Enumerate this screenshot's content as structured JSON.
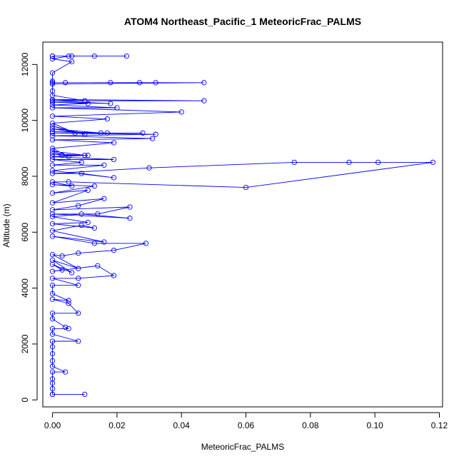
{
  "chart_data": {
    "type": "line",
    "title": "ATOM4 Northeast_Pacific_1 MeteoricFrac_PALMS",
    "xlabel": "MeteoricFrac_PALMS",
    "ylabel": "Altitude (m)",
    "xlim": [
      -0.003,
      0.121
    ],
    "ylim": [
      -250,
      12800
    ],
    "xticks": [
      0,
      0.02,
      0.04,
      0.06,
      0.08,
      0.1,
      0.12
    ],
    "xtick_labels": [
      "0.00",
      "0.02",
      "0.04",
      "0.06",
      "0.08",
      "0.10",
      "0.12"
    ],
    "yticks": [
      0,
      2000,
      4000,
      6000,
      8000,
      10000,
      12000
    ],
    "ytick_labels": [
      "0",
      "2000",
      "4000",
      "6000",
      "8000",
      "10000",
      "12000"
    ],
    "grid": false,
    "legend": "none",
    "series": [
      {
        "color": "#0000ff",
        "marker": "open-circle",
        "points": [
          [
            0.0,
            200
          ],
          [
            0.01,
            200
          ],
          [
            0.0,
            200
          ],
          [
            0.0,
            400
          ],
          [
            0.0,
            600
          ],
          [
            0.0,
            750
          ],
          [
            0.0,
            1000
          ],
          [
            0.004,
            1000
          ],
          [
            0.0,
            1200
          ],
          [
            0.0,
            1400
          ],
          [
            0.0,
            1650
          ],
          [
            0.0,
            1900
          ],
          [
            0.0,
            2100
          ],
          [
            0.008,
            2100
          ],
          [
            0.0,
            2350
          ],
          [
            0.0,
            2550
          ],
          [
            0.005,
            2550
          ],
          [
            0.004,
            2600
          ],
          [
            0.0,
            2900
          ],
          [
            0.0,
            3100
          ],
          [
            0.008,
            3100
          ],
          [
            0.005,
            3450
          ],
          [
            0.0,
            3600
          ],
          [
            0.005,
            3550
          ],
          [
            0.0,
            3800
          ],
          [
            0.0,
            4100
          ],
          [
            0.008,
            4100
          ],
          [
            0.0,
            4350
          ],
          [
            0.008,
            4350
          ],
          [
            0.019,
            4450
          ],
          [
            0.014,
            4800
          ],
          [
            0.0,
            4600
          ],
          [
            0.003,
            4650
          ],
          [
            0.0,
            4850
          ],
          [
            0.006,
            4550
          ],
          [
            0.0,
            5000
          ],
          [
            0.008,
            4700
          ],
          [
            0.0,
            5200
          ],
          [
            0.003,
            5150
          ],
          [
            0.008,
            5250
          ],
          [
            0.019,
            5350
          ],
          [
            0.029,
            5600
          ],
          [
            0.013,
            5600
          ],
          [
            0.0,
            5850
          ],
          [
            0.016,
            5650
          ],
          [
            0.0,
            6050
          ],
          [
            0.009,
            6250
          ],
          [
            0.013,
            6150
          ],
          [
            0.0,
            6300
          ],
          [
            0.011,
            6350
          ],
          [
            0.0,
            6550
          ],
          [
            0.009,
            6650
          ],
          [
            0.024,
            6500
          ],
          [
            0.0,
            6650
          ],
          [
            0.014,
            6650
          ],
          [
            0.024,
            6900
          ],
          [
            0.0,
            6800
          ],
          [
            0.008,
            6950
          ],
          [
            0.016,
            7200
          ],
          [
            0.0,
            7050
          ],
          [
            0.011,
            7500
          ],
          [
            0.0,
            7400
          ],
          [
            0.013,
            7650
          ],
          [
            0.0,
            7700
          ],
          [
            0.006,
            7650
          ],
          [
            0.0,
            7800
          ],
          [
            0.005,
            7800
          ],
          [
            0.06,
            7600
          ],
          [
            0.118,
            8500
          ],
          [
            0.101,
            8500
          ],
          [
            0.092,
            8500
          ],
          [
            0.075,
            8500
          ],
          [
            0.03,
            8300
          ],
          [
            0.0,
            8100
          ],
          [
            0.009,
            8100
          ],
          [
            0.019,
            7950
          ],
          [
            0.0,
            8200
          ],
          [
            0.016,
            8400
          ],
          [
            0.0,
            8400
          ],
          [
            0.009,
            8500
          ],
          [
            0.0,
            8600
          ],
          [
            0.019,
            8600
          ],
          [
            0.0,
            8700
          ],
          [
            0.011,
            8750
          ],
          [
            0.003,
            8750
          ],
          [
            0.0,
            8800
          ],
          [
            0.01,
            8750
          ],
          [
            0.0,
            8900
          ],
          [
            0.005,
            8700
          ],
          [
            0.0,
            9000
          ],
          [
            0.019,
            9200
          ],
          [
            0.0,
            9300
          ],
          [
            0.031,
            9350
          ],
          [
            0.0,
            9450
          ],
          [
            0.032,
            9500
          ],
          [
            0.0,
            9550
          ],
          [
            0.028,
            9550
          ],
          [
            0.017,
            9550
          ],
          [
            0.0,
            9600
          ],
          [
            0.015,
            9550
          ],
          [
            0.0,
            9700
          ],
          [
            0.01,
            9500
          ],
          [
            0.0,
            9800
          ],
          [
            0.007,
            9550
          ],
          [
            0.0,
            9900
          ],
          [
            0.017,
            10050
          ],
          [
            0.0,
            10150
          ],
          [
            0.04,
            10300
          ],
          [
            0.0,
            10450
          ],
          [
            0.02,
            10450
          ],
          [
            0.0,
            10550
          ],
          [
            0.011,
            10600
          ],
          [
            0.0,
            10650
          ],
          [
            0.018,
            10600
          ],
          [
            0.0,
            10700
          ],
          [
            0.047,
            10700
          ],
          [
            0.0,
            10750
          ],
          [
            0.01,
            10700
          ],
          [
            0.0,
            10900
          ],
          [
            0.0,
            11050
          ],
          [
            0.0,
            11300
          ],
          [
            0.047,
            11350
          ],
          [
            0.032,
            11350
          ],
          [
            0.027,
            11350
          ],
          [
            0.018,
            11350
          ],
          [
            0.004,
            11350
          ],
          [
            0.0,
            11350
          ],
          [
            0.0,
            11400
          ],
          [
            0.0,
            11700
          ],
          [
            0.006,
            12100
          ],
          [
            0.0,
            12200
          ],
          [
            0.005,
            12300
          ],
          [
            0.0,
            12300
          ],
          [
            0.023,
            12300
          ],
          [
            0.013,
            12300
          ],
          [
            0.006,
            12300
          ],
          [
            0.0,
            12300
          ]
        ]
      }
    ]
  }
}
